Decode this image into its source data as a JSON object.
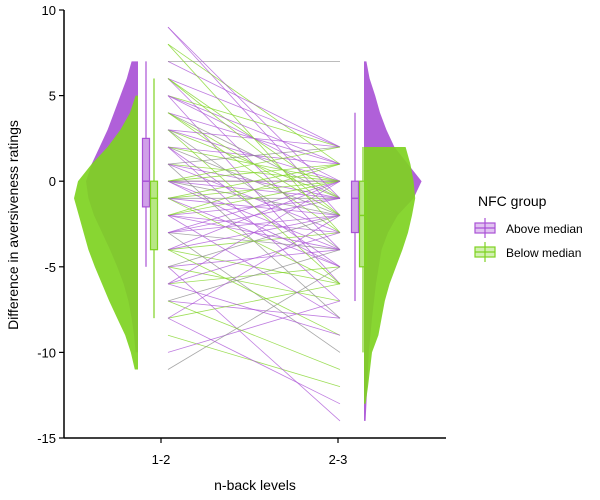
{
  "chart_data": {
    "type": "raincloud",
    "title": "",
    "xlabel": "n-back levels",
    "ylabel": "Difference in aversiveness ratings",
    "categories": [
      "1-2",
      "2-3"
    ],
    "ylim": [
      -15,
      10
    ],
    "yticks": [
      10,
      5,
      0,
      -5,
      -10,
      -15
    ],
    "grid": false,
    "legend": {
      "title": "NFC group",
      "placement": "right",
      "entries": [
        "Above median",
        "Below median"
      ]
    },
    "colors": {
      "above": "#a952d6",
      "below": "#7ed321",
      "paired_lines": "#8a8a8a"
    },
    "series": [
      {
        "name": "Above median",
        "density": {
          "1-2": [
            [
              -10,
              0.03
            ],
            [
              -9,
              0.05
            ],
            [
              -8,
              0.08
            ],
            [
              -7,
              0.12
            ],
            [
              -6,
              0.18
            ],
            [
              -5,
              0.26
            ],
            [
              -4,
              0.35
            ],
            [
              -3,
              0.45
            ],
            [
              -2,
              0.55
            ],
            [
              -1,
              0.62
            ],
            [
              0,
              0.65
            ],
            [
              1,
              0.58
            ],
            [
              2,
              0.48
            ],
            [
              3,
              0.38
            ],
            [
              4,
              0.3
            ],
            [
              5,
              0.22
            ],
            [
              6,
              0.14
            ],
            [
              7,
              0.08
            ]
          ],
          "2-3": [
            [
              -14,
              0.02
            ],
            [
              -12,
              0.04
            ],
            [
              -10,
              0.06
            ],
            [
              -8,
              0.1
            ],
            [
              -6,
              0.15
            ],
            [
              -4,
              0.22
            ],
            [
              -3,
              0.3
            ],
            [
              -2,
              0.42
            ],
            [
              -1,
              0.62
            ],
            [
              0,
              0.72
            ],
            [
              1,
              0.55
            ],
            [
              2,
              0.38
            ],
            [
              3,
              0.28
            ],
            [
              4,
              0.2
            ],
            [
              5,
              0.14
            ],
            [
              6,
              0.07
            ],
            [
              7,
              0.03
            ]
          ]
        },
        "boxplot": {
          "1-2": {
            "min": -5,
            "q1": -1.5,
            "median": 0,
            "q3": 2.5,
            "max": 7
          },
          "2-3": {
            "min": -7,
            "q1": -3,
            "median": -1,
            "q3": 0,
            "max": 4
          }
        }
      },
      {
        "name": "Below median",
        "density": {
          "1-2": [
            [
              -11,
              0.04
            ],
            [
              -10,
              0.09
            ],
            [
              -9,
              0.16
            ],
            [
              -8,
              0.26
            ],
            [
              -7,
              0.36
            ],
            [
              -6,
              0.45
            ],
            [
              -5,
              0.54
            ],
            [
              -4,
              0.62
            ],
            [
              -3,
              0.68
            ],
            [
              -2,
              0.74
            ],
            [
              -1,
              0.8
            ],
            [
              0,
              0.75
            ],
            [
              1,
              0.58
            ],
            [
              2,
              0.38
            ],
            [
              3,
              0.22
            ],
            [
              4,
              0.1
            ],
            [
              5,
              0.03
            ]
          ],
          "2-3": [
            [
              -13,
              0.02
            ],
            [
              -12,
              0.05
            ],
            [
              -10,
              0.1
            ],
            [
              -9,
              0.18
            ],
            [
              -7,
              0.26
            ],
            [
              -6,
              0.32
            ],
            [
              -5,
              0.4
            ],
            [
              -4,
              0.48
            ],
            [
              -3,
              0.55
            ],
            [
              -2,
              0.6
            ],
            [
              -1,
              0.64
            ],
            [
              0,
              0.62
            ],
            [
              1,
              0.58
            ],
            [
              2,
              0.52
            ]
          ]
        },
        "boxplot": {
          "1-2": {
            "min": -8,
            "q1": -4,
            "median": -1,
            "q3": 0,
            "max": 6
          },
          "2-3": {
            "min": -10,
            "q1": -5,
            "median": -2,
            "q3": 0,
            "max": 2
          }
        }
      }
    ],
    "paired_lines": [
      [
        9,
        -2
      ],
      [
        8,
        1
      ],
      [
        7,
        2
      ],
      [
        7,
        7
      ],
      [
        6,
        -4
      ],
      [
        6,
        -1
      ],
      [
        5,
        0
      ],
      [
        5,
        2
      ],
      [
        5,
        -6
      ],
      [
        4,
        -1
      ],
      [
        4,
        1
      ],
      [
        4,
        -3
      ],
      [
        3,
        2
      ],
      [
        3,
        -1
      ],
      [
        3,
        0
      ],
      [
        2,
        -2
      ],
      [
        2,
        1
      ],
      [
        2,
        0
      ],
      [
        2,
        -5
      ],
      [
        1,
        0
      ],
      [
        1,
        -3
      ],
      [
        1,
        2
      ],
      [
        1,
        -1
      ],
      [
        0,
        0
      ],
      [
        0,
        -1
      ],
      [
        0,
        1
      ],
      [
        0,
        -4
      ],
      [
        0,
        -2
      ],
      [
        0,
        0
      ],
      [
        -1,
        0
      ],
      [
        -1,
        -2
      ],
      [
        -1,
        1
      ],
      [
        -1,
        -5
      ],
      [
        -1,
        -1
      ],
      [
        -2,
        -1
      ],
      [
        -2,
        0
      ],
      [
        -2,
        -3
      ],
      [
        -2,
        1
      ],
      [
        -3,
        -1
      ],
      [
        -3,
        -4
      ],
      [
        -3,
        0
      ],
      [
        -4,
        -3
      ],
      [
        -4,
        -2
      ],
      [
        -4,
        -6
      ],
      [
        -4,
        0
      ],
      [
        -5,
        -2
      ],
      [
        -5,
        -4
      ],
      [
        -5,
        -7
      ],
      [
        -6,
        -3
      ],
      [
        -6,
        -5
      ],
      [
        -6,
        0
      ],
      [
        -7,
        -4
      ],
      [
        -7,
        -8
      ],
      [
        -8,
        -6
      ],
      [
        -8,
        -2
      ],
      [
        -9,
        -12
      ],
      [
        -10,
        -7
      ],
      [
        -11,
        -5
      ],
      [
        9,
        -1
      ],
      [
        8,
        -3
      ],
      [
        6,
        2
      ],
      [
        3,
        -6
      ],
      [
        -2,
        -8
      ],
      [
        -3,
        -10
      ],
      [
        -5,
        -14
      ],
      [
        -7,
        -11
      ],
      [
        2,
        -7
      ],
      [
        -4,
        -9
      ],
      [
        0,
        -5
      ],
      [
        1,
        -8
      ],
      [
        -6,
        -9
      ],
      [
        4,
        -2
      ],
      [
        5,
        1
      ],
      [
        -1,
        -6
      ],
      [
        -8,
        -13
      ],
      [
        3,
        -4
      ],
      [
        -2,
        -4
      ],
      [
        0,
        2
      ],
      [
        -3,
        -2
      ],
      [
        6,
        -2
      ]
    ]
  }
}
